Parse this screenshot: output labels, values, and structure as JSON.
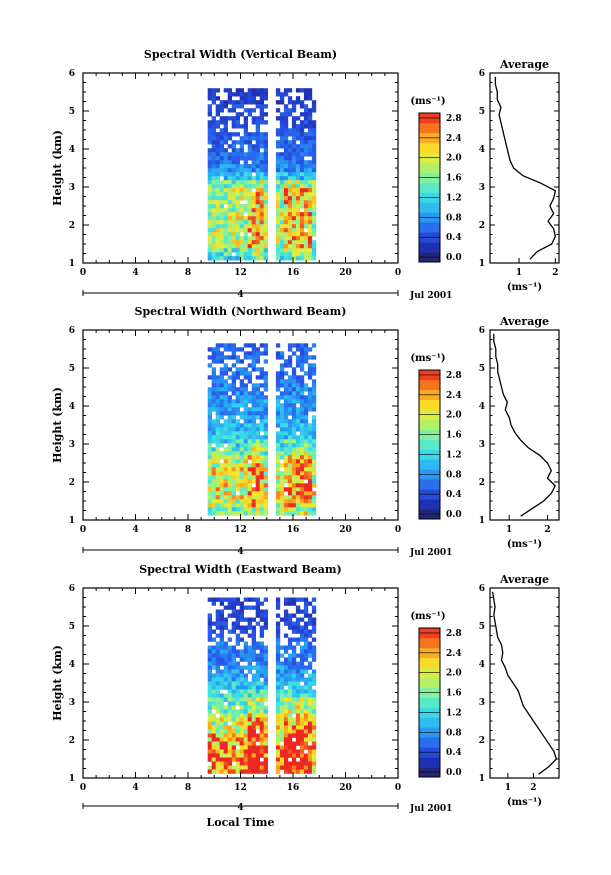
{
  "chart_data": [
    {
      "type": "heatmap",
      "title": "Spectral Width (Vertical Beam)",
      "ylabel": "Height (km)",
      "xlabel": "",
      "xlim": [
        0,
        24
      ],
      "ylim": [
        1,
        6
      ],
      "xticks": [
        "0",
        "4",
        "8",
        "12",
        "16",
        "20",
        "0"
      ],
      "yticks": [
        "1",
        "2",
        "3",
        "4",
        "5",
        "6"
      ],
      "day_bar_label": "4",
      "date_label": "Jul 2001",
      "colorbar_unit": "(ms⁻¹)",
      "colorbar_ticks": [
        "0.0",
        "0.4",
        "0.8",
        "1.2",
        "1.6",
        "2.0",
        "2.4",
        "2.8"
      ],
      "colorbar_range": [
        0,
        3.0
      ],
      "data_window_hours": [
        [
          9.5,
          13.8
        ],
        [
          14.7,
          17.7
        ]
      ],
      "data_height_range_km": [
        1.15,
        5.6
      ],
      "profile": {
        "title": "Average",
        "xlabel": "(ms⁻¹)",
        "xlim": [
          0.2,
          2.1
        ],
        "xticks": [
          "1",
          "2"
        ],
        "heights_km": [
          1.1,
          1.3,
          1.5,
          1.7,
          1.9,
          2.1,
          2.3,
          2.5,
          2.7,
          2.9,
          3.1,
          3.3,
          3.5,
          3.7,
          3.9,
          4.1,
          4.3,
          4.5,
          4.7,
          4.9,
          5.1,
          5.3,
          5.5,
          5.7,
          5.9
        ],
        "values": [
          1.3,
          1.5,
          1.9,
          2.0,
          1.95,
          1.8,
          1.95,
          1.85,
          1.95,
          2.0,
          1.6,
          1.1,
          0.85,
          0.75,
          0.7,
          0.65,
          0.6,
          0.55,
          0.5,
          0.45,
          0.5,
          0.4,
          0.4,
          0.35,
          0.35
        ]
      }
    },
    {
      "type": "heatmap",
      "title": "Spectral Width (Northward Beam)",
      "ylabel": "Height (km)",
      "xlabel": "",
      "xlim": [
        0,
        24
      ],
      "ylim": [
        1,
        6
      ],
      "xticks": [
        "0",
        "4",
        "8",
        "12",
        "16",
        "20",
        "0"
      ],
      "yticks": [
        "1",
        "2",
        "3",
        "4",
        "5",
        "6"
      ],
      "day_bar_label": "4",
      "date_label": "Jul 2001",
      "colorbar_unit": "(ms⁻¹)",
      "colorbar_ticks": [
        "0.0",
        "0.4",
        "0.8",
        "1.2",
        "1.6",
        "2.0",
        "2.4",
        "2.8"
      ],
      "colorbar_range": [
        0,
        3.0
      ],
      "data_window_hours": [
        [
          9.5,
          13.8
        ],
        [
          14.7,
          17.7
        ]
      ],
      "data_height_range_km": [
        1.15,
        5.65
      ],
      "profile": {
        "title": "Average",
        "xlabel": "(ms⁻¹)",
        "xlim": [
          0.5,
          2.3
        ],
        "xticks": [
          "1",
          "2"
        ],
        "heights_km": [
          1.1,
          1.3,
          1.5,
          1.7,
          1.9,
          2.1,
          2.3,
          2.5,
          2.7,
          2.9,
          3.1,
          3.3,
          3.5,
          3.7,
          3.9,
          4.1,
          4.3,
          4.5,
          4.7,
          4.9,
          5.1,
          5.3,
          5.5,
          5.7,
          5.9
        ],
        "values": [
          1.3,
          1.6,
          1.9,
          2.1,
          2.2,
          2.0,
          2.1,
          2.0,
          1.8,
          1.5,
          1.3,
          1.15,
          1.05,
          1.0,
          0.9,
          0.95,
          0.85,
          0.8,
          0.75,
          0.7,
          0.7,
          0.65,
          0.65,
          0.6,
          0.6
        ]
      }
    },
    {
      "type": "heatmap",
      "title": "Spectral Width (Eastward Beam)",
      "ylabel": "Height (km)",
      "xlabel": "Local Time",
      "xlim": [
        0,
        24
      ],
      "ylim": [
        1,
        6
      ],
      "xticks": [
        "0",
        "4",
        "8",
        "12",
        "16",
        "20",
        "0"
      ],
      "yticks": [
        "1",
        "2",
        "3",
        "4",
        "5",
        "6"
      ],
      "day_bar_label": "4",
      "date_label": "Jul 2001",
      "colorbar_unit": "(ms⁻¹)",
      "colorbar_ticks": [
        "0.0",
        "0.4",
        "0.8",
        "1.2",
        "1.6",
        "2.0",
        "2.4",
        "2.8"
      ],
      "colorbar_range": [
        0,
        3.0
      ],
      "data_window_hours": [
        [
          9.5,
          13.8
        ],
        [
          14.7,
          17.7
        ]
      ],
      "data_height_range_km": [
        1.15,
        5.75
      ],
      "profile": {
        "title": "Average",
        "xlabel": "(ms⁻¹)",
        "xlim": [
          0.3,
          3.0
        ],
        "xticks": [
          "1",
          "2"
        ],
        "heights_km": [
          1.1,
          1.3,
          1.5,
          1.7,
          1.9,
          2.1,
          2.3,
          2.5,
          2.7,
          2.9,
          3.1,
          3.3,
          3.5,
          3.7,
          3.9,
          4.1,
          4.3,
          4.5,
          4.7,
          4.9,
          5.1,
          5.3,
          5.5,
          5.7,
          5.9
        ],
        "values": [
          2.2,
          2.6,
          2.9,
          2.8,
          2.6,
          2.4,
          2.2,
          2.0,
          1.8,
          1.6,
          1.5,
          1.4,
          1.2,
          1.0,
          0.9,
          0.75,
          0.8,
          0.75,
          0.6,
          0.55,
          0.5,
          0.45,
          0.5,
          0.45,
          0.4
        ]
      }
    }
  ]
}
